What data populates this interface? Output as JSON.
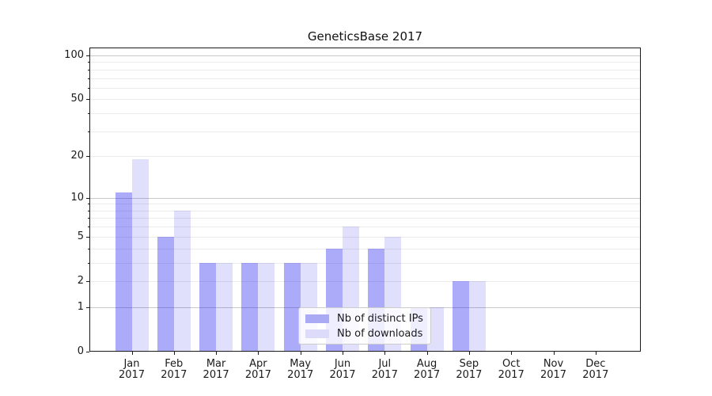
{
  "chart_data": {
    "type": "bar",
    "title": "GeneticsBase 2017",
    "year": "2017",
    "categories": [
      "Jan",
      "Feb",
      "Mar",
      "Apr",
      "May",
      "Jun",
      "Jul",
      "Aug",
      "Sep",
      "Oct",
      "Nov",
      "Dec"
    ],
    "series": [
      {
        "name": "Nb of distinct IPs",
        "color": "#a9a9f4",
        "fill": "rgba(35,35,242,0.38)",
        "values": [
          11,
          5,
          3,
          3,
          3,
          4,
          4,
          1,
          2,
          0,
          0,
          0
        ]
      },
      {
        "name": "Nb of downloads",
        "color": "#dcdcfa",
        "fill": "rgba(35,35,242,0.14)",
        "values": [
          19,
          8,
          3,
          3,
          3,
          6,
          5,
          1,
          2,
          0,
          0,
          0
        ]
      }
    ],
    "xlabel": "",
    "ylabel": "",
    "yscale": "log(1+v)",
    "ylim": [
      0,
      113
    ],
    "yticks": [
      0,
      1,
      2,
      5,
      10,
      20,
      50,
      100
    ],
    "major_gridlines": [
      1,
      10,
      100
    ],
    "minor_gridlines": [
      2,
      3,
      4,
      5,
      6,
      7,
      8,
      9,
      20,
      30,
      40,
      50,
      60,
      70,
      80,
      90
    ],
    "grid": "on",
    "legend_position": "lower center"
  },
  "colors": {
    "spine": "#1a1a1a",
    "grid_minor": "#ebebeb",
    "grid_major": "#c8c8c8",
    "background": "#ffffff"
  }
}
